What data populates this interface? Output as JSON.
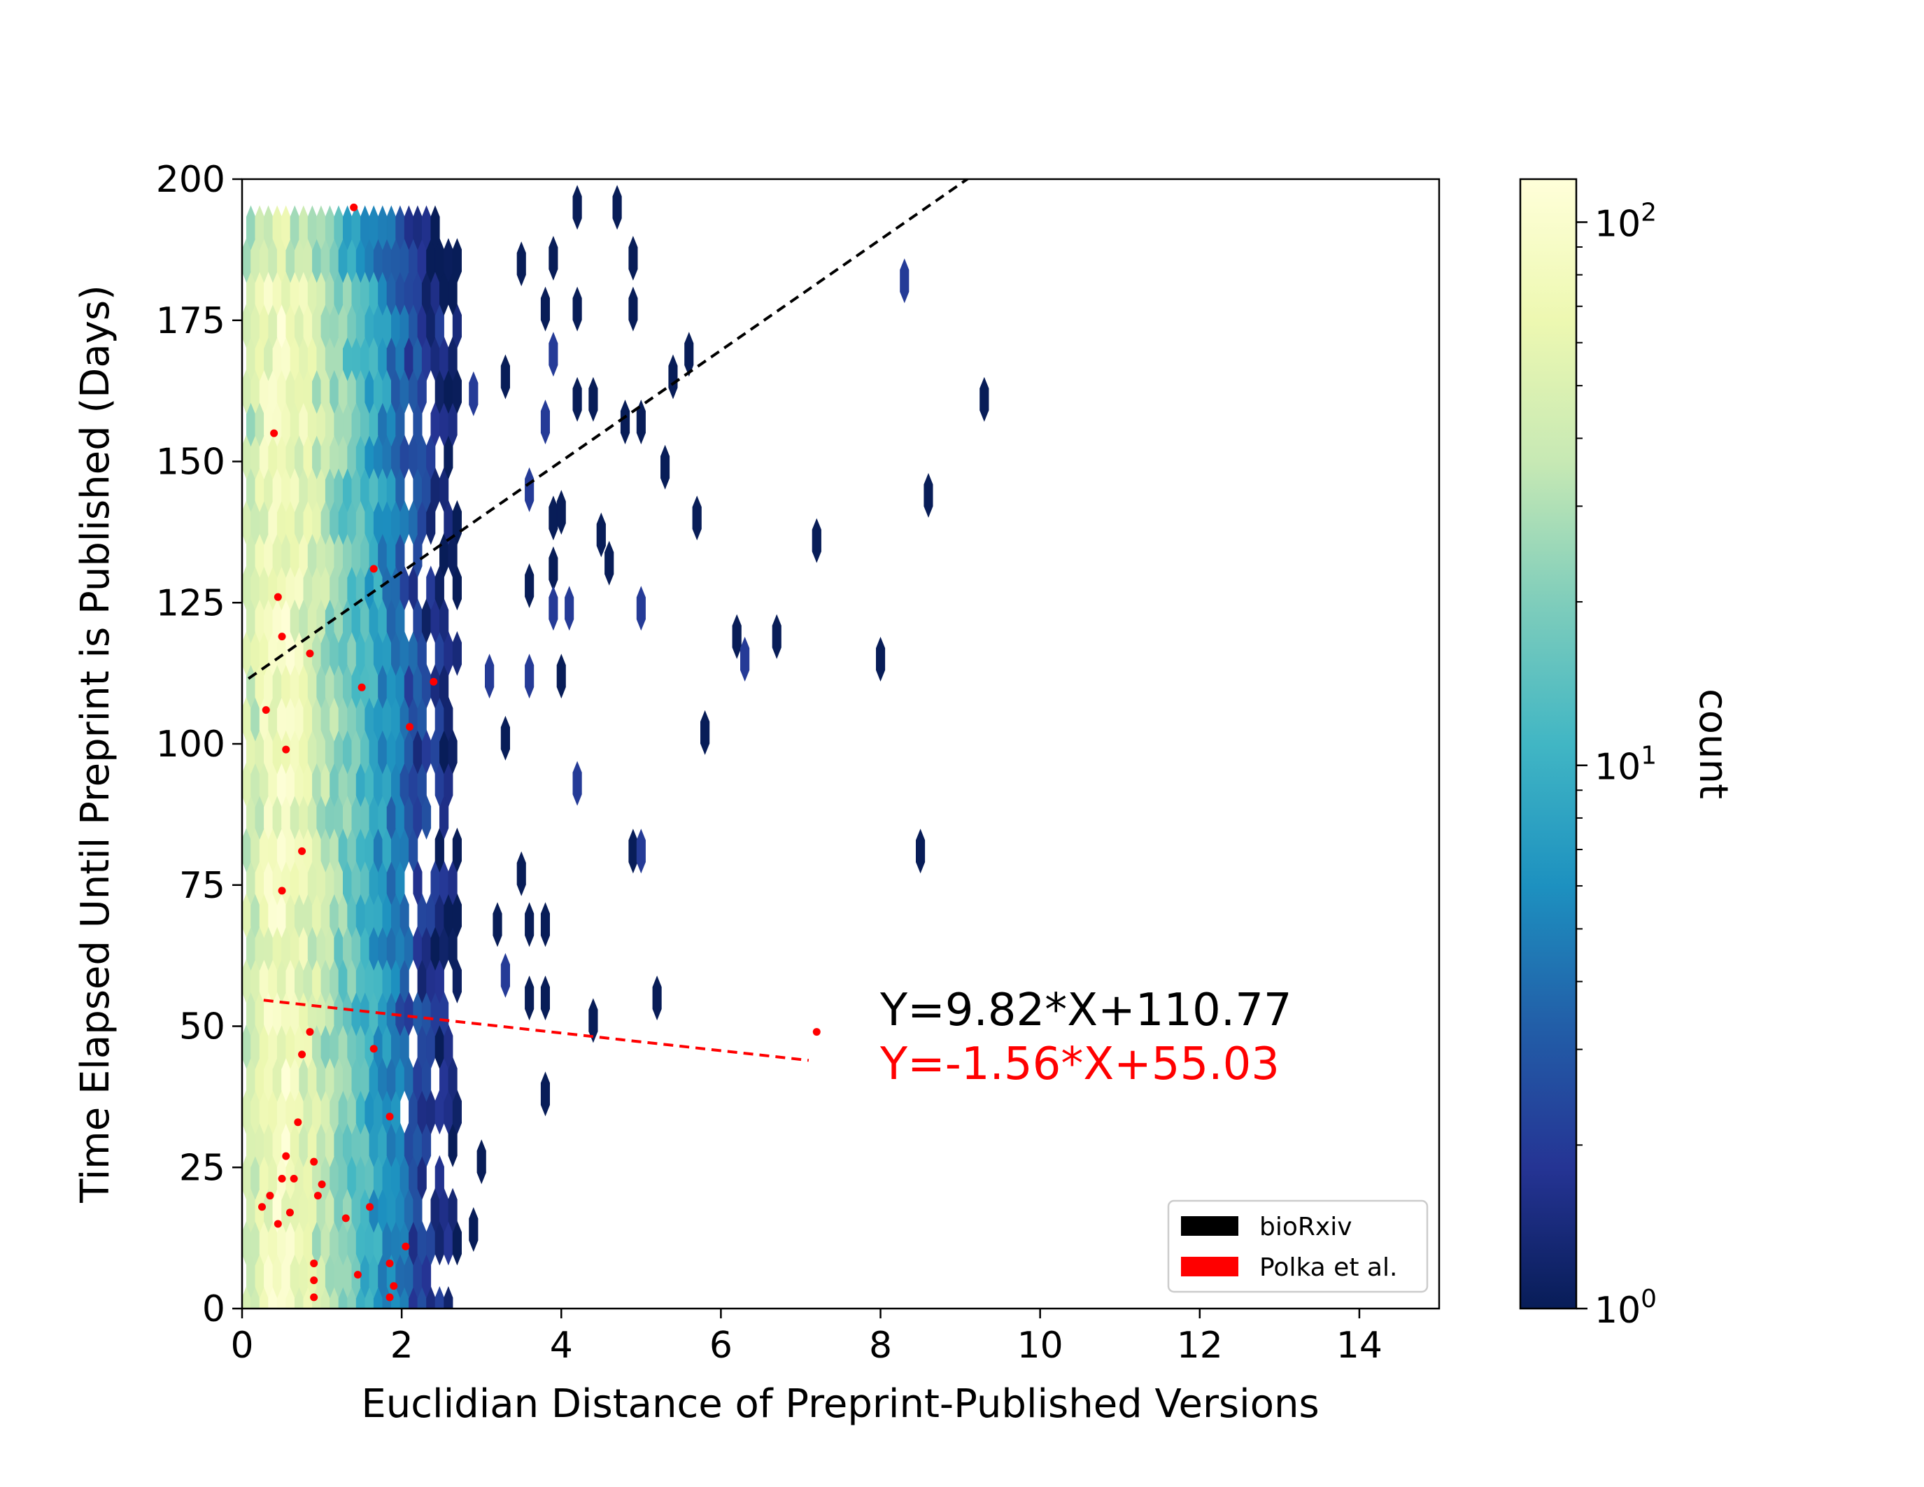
{
  "chart_data": {
    "type": "heatmap",
    "subtype": "hexbin",
    "xlabel": "Euclidian Distance of Preprint-Published Versions",
    "ylabel": "Time Elapsed Until Preprint is Published (Days)",
    "xlim": [
      0,
      15
    ],
    "ylim": [
      0,
      200
    ],
    "xticks": [
      "0",
      "2",
      "4",
      "6",
      "8",
      "10",
      "12",
      "14"
    ],
    "xtick_values": [
      0,
      2,
      4,
      6,
      8,
      10,
      12,
      14
    ],
    "yticks": [
      "0",
      "25",
      "50",
      "75",
      "100",
      "125",
      "150",
      "175",
      "200"
    ],
    "ytick_values": [
      0,
      25,
      50,
      75,
      100,
      125,
      150,
      175,
      200
    ],
    "grid": false,
    "colorbar": {
      "label": "count",
      "scale": "log",
      "range": [
        1,
        120
      ],
      "ticks": [
        {
          "base": "10",
          "exp": "0",
          "value": 1
        },
        {
          "base": "10",
          "exp": "1",
          "value": 10
        },
        {
          "base": "10",
          "exp": "2",
          "value": 100
        }
      ],
      "colormap": "YlGnBu_r",
      "colors": [
        "#081d58",
        "#253494",
        "#225ea8",
        "#1d91c0",
        "#41b6c4",
        "#7fcdbb",
        "#c7e9b4",
        "#edf8b1",
        "#ffffd9"
      ]
    },
    "hexbin_density": {
      "description_of_values": "approximate count per hexagonal bin as a function of x (distance) for the dense core",
      "x_profile": [
        [
          0.1,
          40
        ],
        [
          0.3,
          70
        ],
        [
          0.5,
          90
        ],
        [
          0.7,
          70
        ],
        [
          0.9,
          45
        ],
        [
          1.1,
          30
        ],
        [
          1.3,
          20
        ],
        [
          1.5,
          13
        ],
        [
          1.7,
          8
        ],
        [
          1.9,
          5
        ],
        [
          2.1,
          3
        ],
        [
          2.3,
          2
        ],
        [
          2.5,
          1.5
        ],
        [
          2.7,
          1
        ]
      ],
      "sparse_bins": [
        [
          3.5,
          185
        ],
        [
          3.9,
          186
        ],
        [
          4.2,
          195
        ],
        [
          4.7,
          195
        ],
        [
          4.9,
          186
        ],
        [
          3.8,
          177
        ],
        [
          4.2,
          177
        ],
        [
          4.9,
          177
        ],
        [
          3.9,
          169
        ],
        [
          5.4,
          165
        ],
        [
          5.6,
          169
        ],
        [
          3.3,
          165
        ],
        [
          2.9,
          162
        ],
        [
          4.2,
          161
        ],
        [
          3.8,
          157
        ],
        [
          4.4,
          161
        ],
        [
          4.8,
          157
        ],
        [
          5.0,
          157
        ],
        [
          5.3,
          149
        ],
        [
          5.7,
          140
        ],
        [
          3.6,
          145
        ],
        [
          3.9,
          140
        ],
        [
          4.0,
          141
        ],
        [
          4.5,
          137
        ],
        [
          4.6,
          132
        ],
        [
          3.9,
          131
        ],
        [
          3.6,
          128
        ],
        [
          3.9,
          124
        ],
        [
          4.1,
          124
        ],
        [
          5.0,
          124
        ],
        [
          3.1,
          112
        ],
        [
          3.6,
          112
        ],
        [
          4.0,
          112
        ],
        [
          3.3,
          101
        ],
        [
          4.2,
          93
        ],
        [
          4.9,
          81
        ],
        [
          5.0,
          81
        ],
        [
          3.5,
          77
        ],
        [
          3.2,
          68
        ],
        [
          3.6,
          68
        ],
        [
          3.8,
          68
        ],
        [
          3.3,
          59
        ],
        [
          3.6,
          55
        ],
        [
          3.8,
          55
        ],
        [
          4.4,
          51
        ],
        [
          5.2,
          55
        ],
        [
          3.8,
          38
        ],
        [
          3.0,
          26
        ],
        [
          2.9,
          14
        ],
        [
          8.3,
          182
        ],
        [
          9.3,
          161
        ],
        [
          8.6,
          144
        ],
        [
          7.2,
          136
        ],
        [
          6.2,
          119
        ],
        [
          6.3,
          115
        ],
        [
          6.7,
          119
        ],
        [
          8.0,
          115
        ],
        [
          5.8,
          102
        ],
        [
          8.5,
          81
        ]
      ]
    },
    "series": [
      {
        "name": "bioRxiv",
        "color": "#000000",
        "fit": {
          "slope": 9.82,
          "intercept": 110.77,
          "x_range": [
            0.08,
            9.1
          ]
        },
        "equation_label": "Y=9.82*X+110.77"
      },
      {
        "name": "Polka et al.",
        "color": "#ff0000",
        "fit": {
          "slope": -1.56,
          "intercept": 55.03,
          "x_range": [
            0.27,
            7.1
          ]
        },
        "equation_label": "Y=-1.56*X+55.03",
        "points": [
          [
            1.4,
            195
          ],
          [
            0.4,
            155
          ],
          [
            0.45,
            126
          ],
          [
            0.5,
            119
          ],
          [
            0.85,
            116
          ],
          [
            1.5,
            110
          ],
          [
            2.4,
            111
          ],
          [
            0.3,
            106
          ],
          [
            1.65,
            131
          ],
          [
            2.1,
            103
          ],
          [
            0.55,
            99
          ],
          [
            0.75,
            81
          ],
          [
            0.5,
            74
          ],
          [
            0.85,
            49
          ],
          [
            0.75,
            45
          ],
          [
            1.65,
            46
          ],
          [
            7.2,
            49
          ],
          [
            0.7,
            33
          ],
          [
            1.85,
            34
          ],
          [
            0.55,
            27
          ],
          [
            0.9,
            26
          ],
          [
            0.5,
            23
          ],
          [
            0.65,
            23
          ],
          [
            0.35,
            20
          ],
          [
            0.25,
            18
          ],
          [
            0.95,
            20
          ],
          [
            1.0,
            22
          ],
          [
            0.6,
            17
          ],
          [
            1.6,
            18
          ],
          [
            0.45,
            15
          ],
          [
            1.3,
            16
          ],
          [
            0.9,
            8
          ],
          [
            1.85,
            8
          ],
          [
            2.05,
            11
          ],
          [
            1.45,
            6
          ],
          [
            0.9,
            5
          ],
          [
            1.9,
            4
          ],
          [
            0.9,
            2
          ],
          [
            1.85,
            2
          ]
        ]
      }
    ],
    "legend": {
      "position": "bottom-right",
      "entries": [
        "bioRxiv",
        "Polka et al."
      ]
    }
  }
}
